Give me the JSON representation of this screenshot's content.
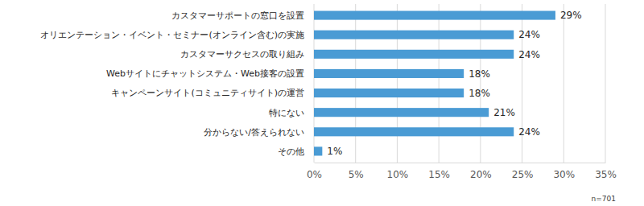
{
  "chart_data": {
    "type": "bar",
    "orientation": "horizontal",
    "categories": [
      "カスタマーサポートの窓口を設置",
      "オリエンテーション・イベント・セミナー(オンライン含む)の実施",
      "カスタマーサクセスの取り組み",
      "Webサイトにチャットシステム・Web接客の設置",
      "キャンペーンサイト(コミュニティサイト)の運営",
      "特にない",
      "分からない/答えられない",
      "その他"
    ],
    "values": [
      29,
      24,
      24,
      18,
      18,
      21,
      24,
      1
    ],
    "value_labels": [
      "29%",
      "24%",
      "24%",
      "18%",
      "18%",
      "21%",
      "24%",
      "1%"
    ],
    "data_labels": true,
    "color": "#4a9bd4",
    "xlim": [
      0,
      35
    ],
    "xticks": [
      {
        "value": 0,
        "label": "0%"
      },
      {
        "value": 5,
        "label": "5%"
      },
      {
        "value": 10,
        "label": "10%"
      },
      {
        "value": 15,
        "label": "15%"
      },
      {
        "value": 20,
        "label": "20%"
      },
      {
        "value": 25,
        "label": "25%"
      },
      {
        "value": 30,
        "label": "30%"
      },
      {
        "value": 35,
        "label": "35%"
      }
    ],
    "grid": true,
    "annotations": [
      "n=701"
    ]
  }
}
